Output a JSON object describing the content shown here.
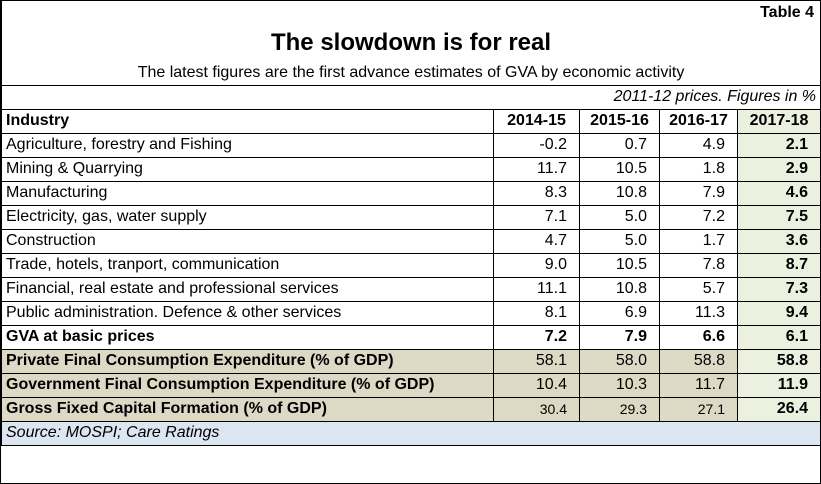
{
  "table_tag": "Table 4",
  "title": "The slowdown is for real",
  "subtitle": "The latest figures are the first advance estimates of GVA by economic activity",
  "prices_note": "2011-12 prices. Figures in %",
  "columns": [
    "Industry",
    "2014-15",
    "2015-16",
    "2016-17",
    "2017-18"
  ],
  "rows": [
    {
      "industry": "Agriculture, forestry and Fishing",
      "v1": "-0.2",
      "v2": "0.7",
      "v3": "4.9",
      "v4": "2.1"
    },
    {
      "industry": "Mining & Quarrying",
      "v1": "11.7",
      "v2": "10.5",
      "v3": "1.8",
      "v4": "2.9"
    },
    {
      "industry": "Manufacturing",
      "v1": "8.3",
      "v2": "10.8",
      "v3": "7.9",
      "v4": "4.6"
    },
    {
      "industry": "Electricity, gas, water supply",
      "v1": "7.1",
      "v2": "5.0",
      "v3": "7.2",
      "v4": "7.5"
    },
    {
      "industry": "Construction",
      "v1": "4.7",
      "v2": "5.0",
      "v3": "1.7",
      "v4": "3.6"
    },
    {
      "industry": "Trade, hotels, tranport, communication",
      "v1": "9.0",
      "v2": "10.5",
      "v3": "7.8",
      "v4": "8.7"
    },
    {
      "industry": "Financial, real estate and professional services",
      "v1": "11.1",
      "v2": "10.8",
      "v3": "5.7",
      "v4": "7.3"
    },
    {
      "industry": "Public administration. Defence & other services",
      "v1": "8.1",
      "v2": "6.9",
      "v3": "11.3",
      "v4": "9.4"
    }
  ],
  "gva_row": {
    "industry": "GVA at basic prices",
    "v1": "7.2",
    "v2": "7.9",
    "v3": "6.6",
    "v4": "6.1"
  },
  "extra_rows": [
    {
      "industry": "Private Final Consumption Expenditure (% of GDP)",
      "v1": "58.1",
      "v2": "58.0",
      "v3": "58.8",
      "v4": "58.8"
    },
    {
      "industry": "Government Final Consumption Expenditure (% of GDP)",
      "v1": "10.4",
      "v2": "10.3",
      "v3": "11.7",
      "v4": "11.9"
    },
    {
      "industry": "Gross Fixed Capital Formation (% of GDP)",
      "v1": "30.4",
      "v2": "29.3",
      "v3": "27.1",
      "v4": "26.4"
    }
  ],
  "source": "Source: MOSPI; Care Ratings"
}
